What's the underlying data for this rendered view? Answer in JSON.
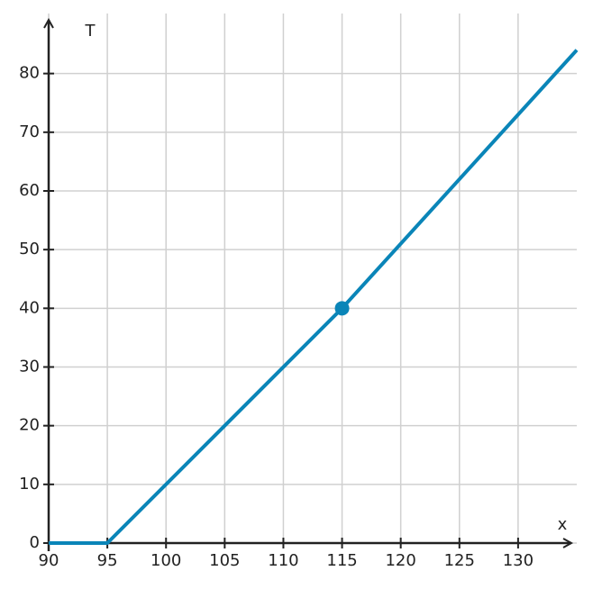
{
  "chart_data": {
    "type": "line",
    "x_label": "x",
    "y_label": "T",
    "x": [
      90,
      95,
      115,
      135
    ],
    "series": [
      {
        "color": "#0a85b8",
        "values": [
          0,
          0,
          40,
          84
        ]
      }
    ],
    "point": {
      "x": 115,
      "y": 40,
      "color": "#0a85b8"
    },
    "xlim": [
      90,
      135
    ],
    "ylim": [
      0,
      89
    ],
    "xticks": [
      90,
      95,
      100,
      105,
      110,
      115,
      120,
      125,
      130
    ],
    "yticks": [
      0,
      10,
      20,
      30,
      40,
      50,
      60,
      70,
      80
    ],
    "grid": true
  }
}
